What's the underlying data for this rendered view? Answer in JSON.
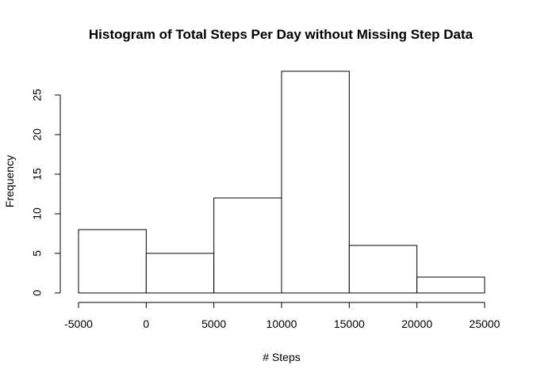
{
  "chart_data": {
    "type": "bar",
    "subtype": "histogram",
    "title": "Histogram of Total Steps Per Day without Missing Step Data",
    "xlabel": "# Steps",
    "ylabel": "Frequency",
    "bins": [
      {
        "x0": -5000,
        "x1": 0,
        "value": 8
      },
      {
        "x0": 0,
        "x1": 5000,
        "value": 5
      },
      {
        "x0": 5000,
        "x1": 10000,
        "value": 12
      },
      {
        "x0": 10000,
        "x1": 15000,
        "value": 28
      },
      {
        "x0": 15000,
        "x1": 20000,
        "value": 6
      },
      {
        "x0": 20000,
        "x1": 25000,
        "value": 2
      }
    ],
    "xlim": [
      -5000,
      25000
    ],
    "ylim": [
      0,
      28
    ],
    "x_ticks": [
      -5000,
      0,
      5000,
      10000,
      15000,
      20000,
      25000
    ],
    "x_tick_labels": [
      "-5000",
      "0",
      "5000",
      "10000",
      "15000",
      "20000",
      "25000"
    ],
    "y_ticks": [
      0,
      5,
      10,
      15,
      20,
      25
    ],
    "y_tick_labels": [
      "0",
      "5",
      "10",
      "15",
      "20",
      "25"
    ],
    "grid": false,
    "legend": "none",
    "colors": {
      "bar_fill": "#ffffff",
      "bar_stroke": "#000000",
      "axis": "#000000",
      "background": "#ffffff"
    }
  }
}
